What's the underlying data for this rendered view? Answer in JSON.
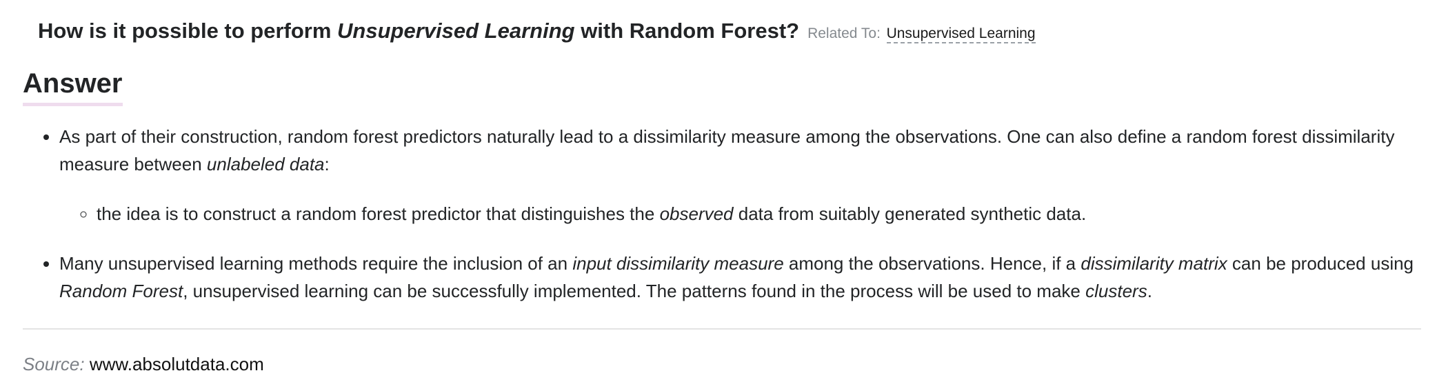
{
  "question": {
    "prefix": "How is it possible to perform ",
    "emphasis": "Unsupervised Learning",
    "suffix": " with Random Forest?",
    "related_label": "Related To:",
    "related_link": "Unsupervised Learning"
  },
  "answer": {
    "heading": "Answer",
    "bullet1": {
      "text_a": "As part of their construction, random forest predictors naturally lead to a dissimilarity measure among the observations. One can also define a random forest dissimilarity measure between ",
      "em_a": "unlabeled data",
      "text_b": ":",
      "sub1": {
        "text_a": "the idea is to construct a random forest predictor that distinguishes the ",
        "em_a": "observed",
        "text_b": " data from suitably generated synthetic data."
      }
    },
    "bullet2": {
      "text_a": "Many unsupervised learning methods require the inclusion of an ",
      "em_a": "input dissimilarity measure",
      "text_b": " among the observations. Hence, if a ",
      "em_b": "dissimilarity matrix",
      "text_c": " can be produced using ",
      "em_c": "Random Forest",
      "text_d": ", unsupervised learning can be successfully implemented. The patterns found in the process will be used to make ",
      "em_d": "clusters",
      "text_e": "."
    }
  },
  "source": {
    "label": "Source:",
    "link": "www.absolutdata.com"
  }
}
